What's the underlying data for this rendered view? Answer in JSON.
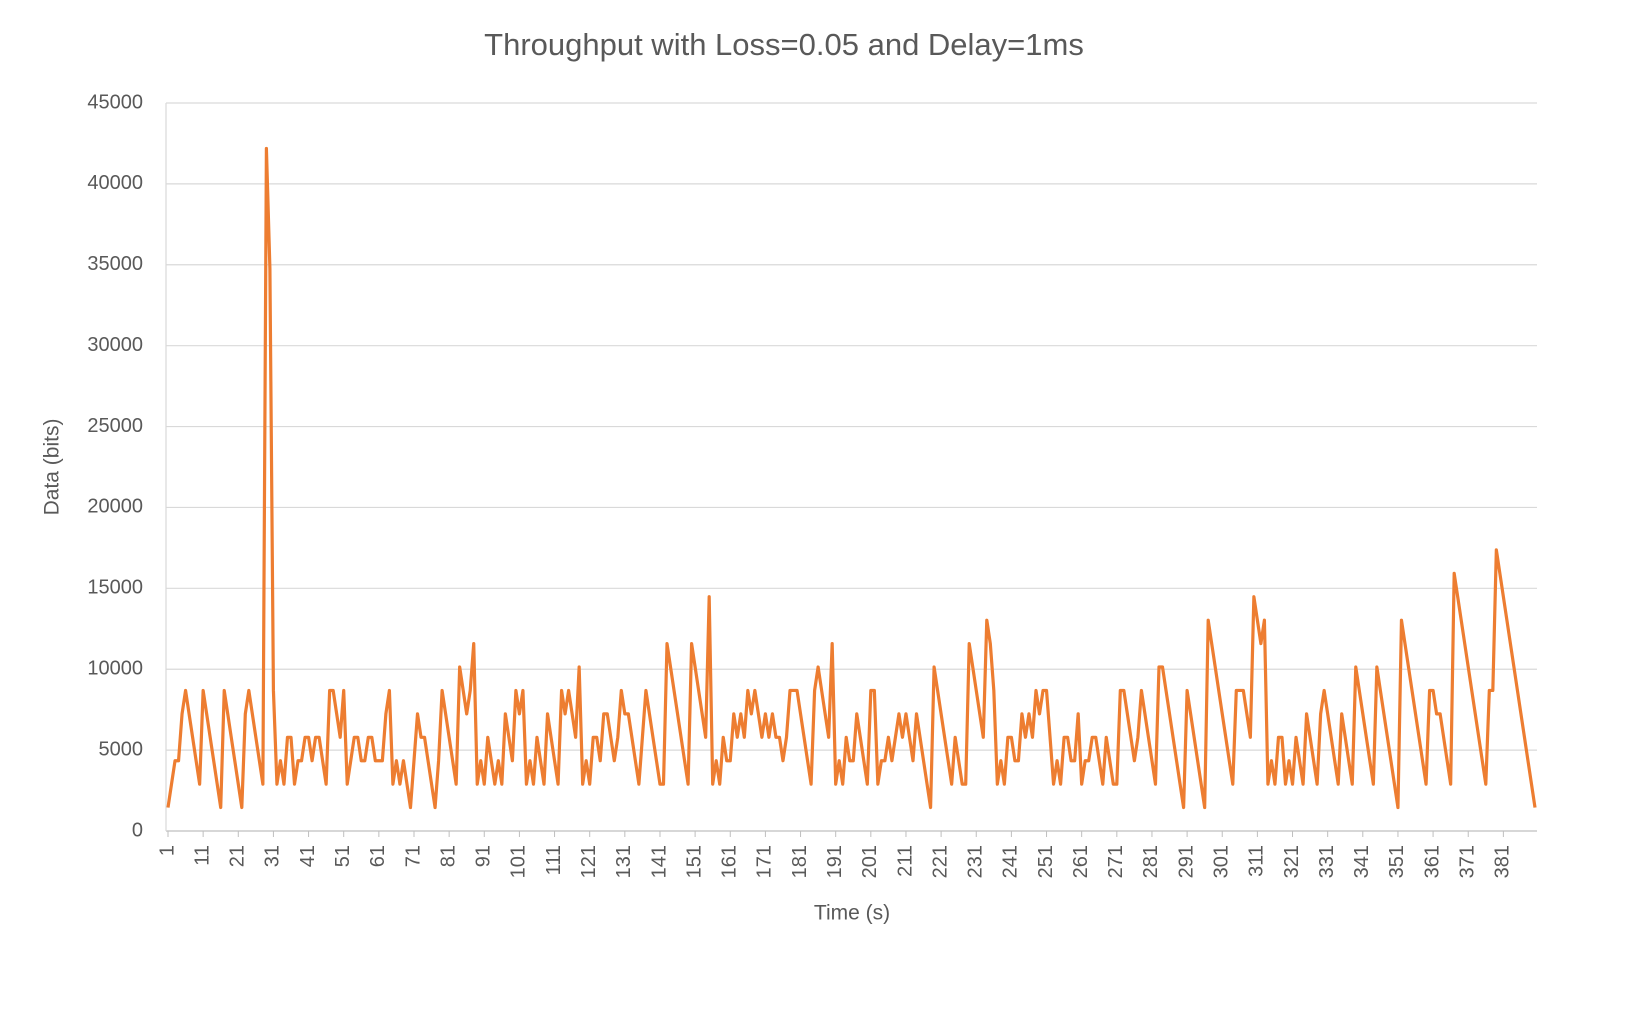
{
  "chart_data": {
    "type": "line",
    "title": "Throughput with Loss=0.05 and Delay=1ms",
    "x_label": "Time (s)",
    "y_label": "Data (bits)",
    "xlim": [
      1,
      390
    ],
    "xticks": [
      1,
      11,
      21,
      31,
      41,
      51,
      61,
      71,
      81,
      91,
      101,
      111,
      121,
      131,
      141,
      151,
      161,
      171,
      181,
      191,
      201,
      211,
      221,
      231,
      241,
      251,
      261,
      271,
      281,
      291,
      301,
      311,
      321,
      331,
      341,
      351,
      361,
      371,
      381
    ],
    "ylim": [
      0,
      45000
    ],
    "yticks": [
      0,
      5000,
      10000,
      15000,
      20000,
      25000,
      30000,
      35000,
      40000,
      45000
    ],
    "grid": true,
    "x": [
      1,
      2,
      3,
      4,
      5,
      6,
      7,
      8,
      9,
      10,
      11,
      12,
      13,
      14,
      15,
      16,
      17,
      18,
      19,
      20,
      21,
      22,
      23,
      24,
      25,
      26,
      27,
      28,
      29,
      30,
      31,
      32,
      33,
      34,
      35,
      36,
      37,
      38,
      39,
      40,
      41,
      42,
      43,
      44,
      45,
      46,
      47,
      48,
      49,
      50,
      51,
      52,
      53,
      54,
      55,
      56,
      57,
      58,
      59,
      60,
      61,
      62,
      63,
      64,
      65,
      66,
      67,
      68,
      69,
      70,
      71,
      72,
      73,
      74,
      75,
      76,
      77,
      78,
      79,
      80,
      81,
      82,
      83,
      84,
      85,
      86,
      87,
      88,
      89,
      90,
      91,
      92,
      93,
      94,
      95,
      96,
      97,
      98,
      99,
      100,
      101,
      102,
      103,
      104,
      105,
      106,
      107,
      108,
      109,
      110,
      111,
      112,
      113,
      114,
      115,
      116,
      117,
      118,
      119,
      120,
      121,
      122,
      123,
      124,
      125,
      126,
      127,
      128,
      129,
      130,
      131,
      132,
      133,
      134,
      135,
      136,
      137,
      138,
      139,
      140,
      141,
      142,
      143,
      144,
      145,
      146,
      147,
      148,
      149,
      150,
      151,
      152,
      153,
      154,
      155,
      156,
      157,
      158,
      159,
      160,
      161,
      162,
      163,
      164,
      165,
      166,
      167,
      168,
      169,
      170,
      171,
      172,
      173,
      174,
      175,
      176,
      177,
      178,
      179,
      180,
      181,
      182,
      183,
      184,
      185,
      186,
      187,
      188,
      189,
      190,
      191,
      192,
      193,
      194,
      195,
      196,
      197,
      198,
      199,
      200,
      201,
      202,
      203,
      204,
      205,
      206,
      207,
      208,
      209,
      210,
      211,
      212,
      213,
      214,
      215,
      216,
      217,
      218,
      219,
      220,
      221,
      222,
      223,
      224,
      225,
      226,
      227,
      228,
      229,
      230,
      231,
      232,
      233,
      234,
      235,
      236,
      237,
      238,
      239,
      240,
      241,
      242,
      243,
      244,
      245,
      246,
      247,
      248,
      249,
      250,
      251,
      252,
      253,
      254,
      255,
      256,
      257,
      258,
      259,
      260,
      261,
      262,
      263,
      264,
      265,
      266,
      267,
      268,
      269,
      270,
      271,
      272,
      273,
      274,
      275,
      276,
      277,
      278,
      279,
      280,
      281,
      282,
      283,
      284,
      285,
      286,
      287,
      288,
      289,
      290,
      291,
      292,
      293,
      294,
      295,
      296,
      297,
      298,
      299,
      300,
      301,
      302,
      303,
      304,
      305,
      306,
      307,
      308,
      309,
      310,
      311,
      312,
      313,
      314,
      315,
      316,
      317,
      318,
      319,
      320,
      321,
      322,
      323,
      324,
      325,
      326,
      327,
      328,
      329,
      330,
      331,
      332,
      333,
      334,
      335,
      336,
      337,
      338,
      339,
      340,
      341,
      342,
      343,
      344,
      345,
      346,
      347,
      348,
      349,
      350,
      351,
      352,
      353,
      354,
      355,
      356,
      357,
      358,
      359,
      360,
      361,
      362,
      363,
      364,
      365,
      366,
      367,
      368,
      369,
      370,
      371,
      372,
      373,
      374,
      375,
      376,
      377,
      378,
      379,
      380,
      381,
      382,
      383,
      384,
      385,
      386,
      387,
      388,
      389,
      390
    ],
    "series": [
      {
        "name": "Data",
        "color": "#ED7D31",
        "values": [
          1448,
          2896,
          4344,
          4344,
          7240,
          8688,
          7240,
          5792,
          4344,
          2896,
          8688,
          7240,
          5792,
          4344,
          2896,
          1448,
          8688,
          7240,
          5792,
          4344,
          2896,
          1448,
          7240,
          8688,
          7240,
          5792,
          4344,
          2896,
          42192,
          34752,
          8688,
          2896,
          4344,
          2896,
          5792,
          5792,
          2896,
          4344,
          4344,
          5792,
          5792,
          4344,
          5792,
          5792,
          4344,
          2896,
          8688,
          8688,
          7240,
          5792,
          8688,
          2896,
          4344,
          5792,
          5792,
          4344,
          4344,
          5792,
          5792,
          4344,
          4344,
          4344,
          7240,
          8688,
          2896,
          4344,
          2896,
          4344,
          2896,
          1448,
          4344,
          7240,
          5792,
          5792,
          4344,
          2896,
          1448,
          4344,
          8688,
          7240,
          5792,
          4344,
          2896,
          10136,
          8688,
          7240,
          8688,
          11584,
          2896,
          4344,
          2896,
          5792,
          4344,
          2896,
          4344,
          2896,
          7240,
          5792,
          4344,
          8688,
          7240,
          8688,
          2896,
          4344,
          2896,
          5792,
          4344,
          2896,
          7240,
          5792,
          4344,
          2896,
          8688,
          7240,
          8688,
          7240,
          5792,
          10136,
          2896,
          4344,
          2896,
          5792,
          5792,
          4344,
          7240,
          7240,
          5792,
          4344,
          5792,
          8688,
          7240,
          7240,
          5792,
          4344,
          2896,
          5792,
          8688,
          7240,
          5792,
          4344,
          2896,
          2896,
          11584,
          10136,
          8688,
          7240,
          5792,
          4344,
          2896,
          11584,
          10136,
          8688,
          7240,
          5792,
          14480,
          2896,
          4344,
          2896,
          5792,
          4344,
          4344,
          7240,
          5792,
          7240,
          5792,
          8688,
          7240,
          8688,
          7240,
          5792,
          7240,
          5792,
          7240,
          5792,
          5792,
          4344,
          5792,
          8688,
          8688,
          8688,
          7240,
          5792,
          4344,
          2896,
          8688,
          10136,
          8688,
          7240,
          5792,
          11584,
          2896,
          4344,
          2896,
          5792,
          4344,
          4344,
          7240,
          5792,
          4344,
          2896,
          8688,
          8688,
          2896,
          4344,
          4344,
          5792,
          4344,
          5792,
          7240,
          5792,
          7240,
          5792,
          4344,
          7240,
          5792,
          4344,
          2896,
          1448,
          10136,
          8688,
          7240,
          5792,
          4344,
          2896,
          5792,
          4344,
          2896,
          2896,
          11584,
          10136,
          8688,
          7240,
          5792,
          13032,
          11584,
          8688,
          2896,
          4344,
          2896,
          5792,
          5792,
          4344,
          4344,
          7240,
          5792,
          7240,
          5792,
          8688,
          7240,
          8688,
          8688,
          5792,
          2896,
          4344,
          2896,
          5792,
          5792,
          4344,
          4344,
          7240,
          2896,
          4344,
          4344,
          5792,
          5792,
          4344,
          2896,
          5792,
          4344,
          2896,
          2896,
          8688,
          8688,
          7240,
          5792,
          4344,
          5792,
          8688,
          7240,
          5792,
          4344,
          2896,
          10136,
          10136,
          8688,
          7240,
          5792,
          4344,
          2896,
          1448,
          8688,
          7240,
          5792,
          4344,
          2896,
          1448,
          13032,
          11584,
          10136,
          8688,
          7240,
          5792,
          4344,
          2896,
          8688,
          8688,
          8688,
          7240,
          5792,
          14480,
          13032,
          11584,
          13032,
          2896,
          4344,
          2896,
          5792,
          5792,
          2896,
          4344,
          2896,
          5792,
          4344,
          2896,
          7240,
          5792,
          4344,
          2896,
          7240,
          8688,
          7240,
          5792,
          4344,
          2896,
          7240,
          5792,
          4344,
          2896,
          10136,
          8688,
          7240,
          5792,
          4344,
          2896,
          10136,
          8688,
          7240,
          5792,
          4344,
          2896,
          1448,
          13032,
          11584,
          10136,
          8688,
          7240,
          5792,
          4344,
          2896,
          8688,
          8688,
          7240,
          7240,
          5792,
          4344,
          2896,
          15928,
          14480,
          13032,
          11584,
          10136,
          8688,
          7240,
          5792,
          4344,
          2896,
          8688,
          8688,
          17376,
          15928,
          14480,
          13032,
          11584,
          10136,
          8688,
          7240,
          5792,
          4344,
          2896,
          1448
        ]
      }
    ]
  }
}
